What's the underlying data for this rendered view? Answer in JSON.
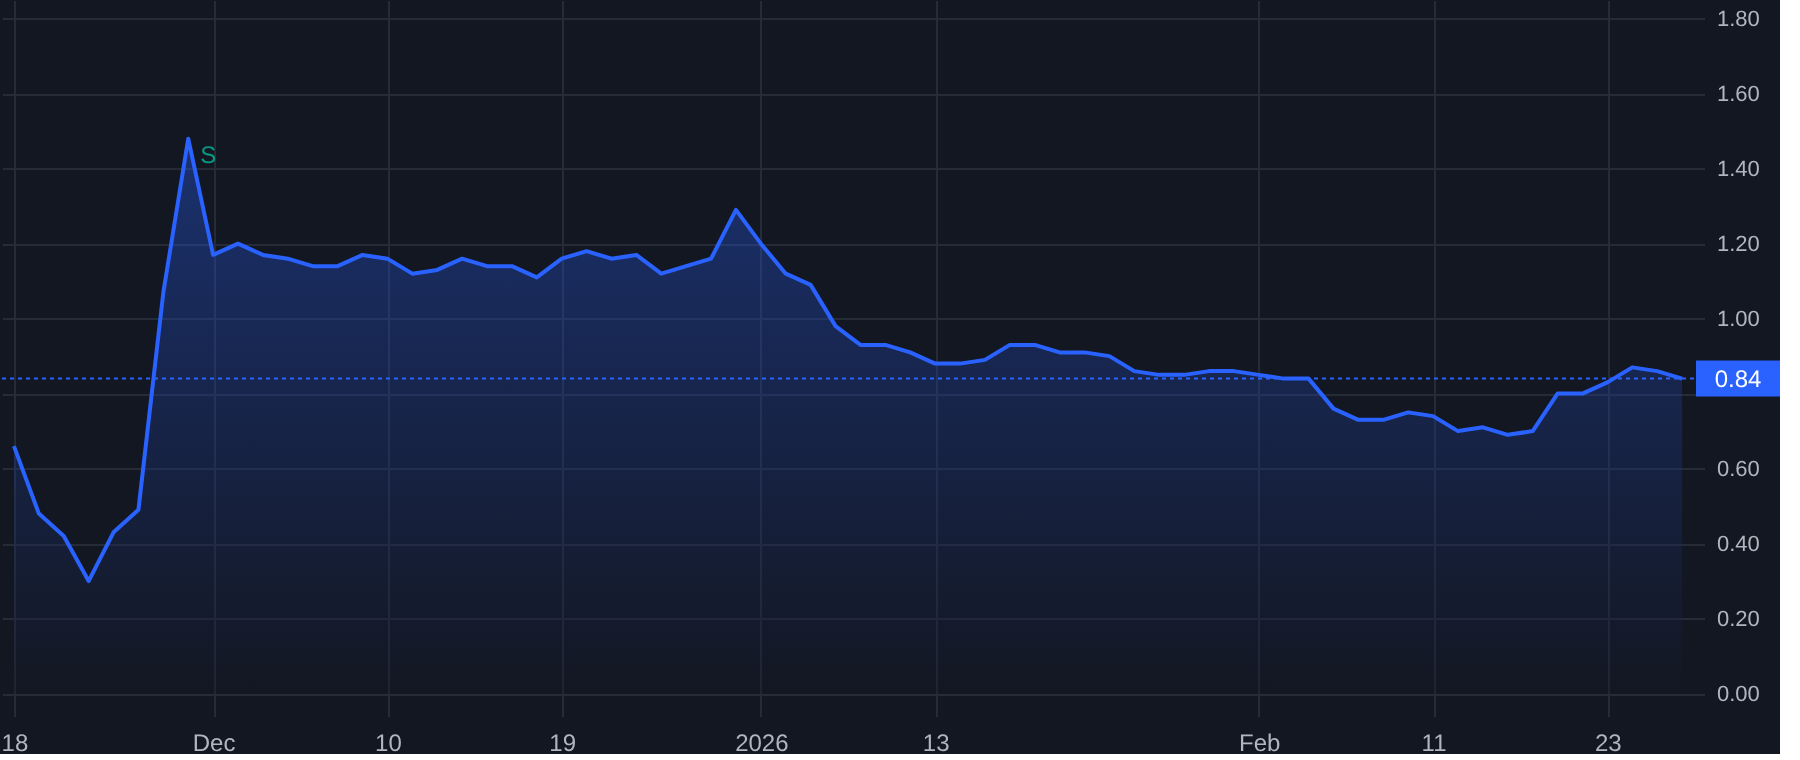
{
  "chart_data": {
    "type": "area",
    "categories": [
      "18",
      null,
      null,
      null,
      null,
      null,
      null,
      null,
      "Dec",
      null,
      null,
      null,
      null,
      null,
      null,
      "10",
      null,
      null,
      null,
      null,
      null,
      null,
      "19",
      null,
      null,
      null,
      null,
      null,
      null,
      null,
      "2026",
      null,
      null,
      null,
      null,
      null,
      null,
      "13",
      null,
      null,
      null,
      null,
      null,
      null,
      null,
      null,
      null,
      null,
      null,
      null,
      "Feb",
      null,
      null,
      null,
      null,
      null,
      null,
      "11",
      null,
      null,
      null,
      null,
      null,
      null,
      "23",
      null,
      null,
      null
    ],
    "series": [
      {
        "color": "#2962ff",
        "values": [
          0.66,
          0.48,
          0.42,
          0.3,
          0.43,
          0.49,
          1.07,
          1.48,
          1.17,
          1.2,
          1.17,
          1.16,
          1.14,
          1.14,
          1.17,
          1.16,
          1.12,
          1.13,
          1.16,
          1.14,
          1.14,
          1.11,
          1.16,
          1.18,
          1.16,
          1.17,
          1.12,
          1.14,
          1.16,
          1.29,
          1.2,
          1.12,
          1.09,
          0.98,
          0.93,
          0.93,
          0.91,
          0.88,
          0.88,
          0.89,
          0.93,
          0.93,
          0.91,
          0.91,
          0.9,
          0.86,
          0.85,
          0.85,
          0.86,
          0.86,
          0.85,
          0.84,
          0.84,
          0.76,
          0.73,
          0.73,
          0.75,
          0.74,
          0.7,
          0.71,
          0.69,
          0.7,
          0.8,
          0.8,
          0.83,
          0.87,
          0.86,
          0.84
        ]
      }
    ],
    "ylim": [
      -0.06,
      1.85
    ],
    "yticks": [
      {
        "value": 0,
        "label": "0.00"
      },
      {
        "value": 0.2,
        "label": "0.20"
      },
      {
        "value": 0.4,
        "label": "0.40"
      },
      {
        "value": 0.6,
        "label": "0.60"
      },
      {
        "value": 0.8,
        "label": null
      },
      {
        "value": 1.0,
        "label": "1.00"
      },
      {
        "value": 1.2,
        "label": "1.20"
      },
      {
        "value": 1.4,
        "label": "1.40"
      },
      {
        "value": 1.6,
        "label": "1.60"
      },
      {
        "value": 1.8,
        "label": "1.80"
      }
    ],
    "grid": true,
    "ref_lines": [
      {
        "axis": "y",
        "value": 0.84,
        "label": "0.84",
        "color": "#2962ff",
        "line_style": "dotted"
      }
    ],
    "annotations": [
      "S"
    ]
  }
}
